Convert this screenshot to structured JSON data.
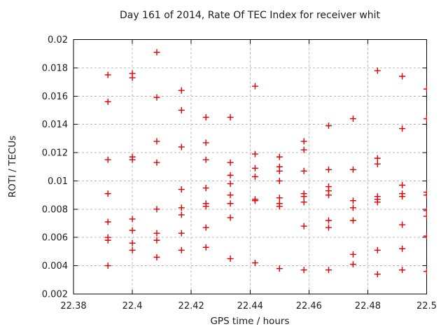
{
  "chart_data": {
    "type": "scatter",
    "title": "Day 161 of 2014, Rate Of TEC Index for receiver whit",
    "xlabel": "GPS time / hours",
    "ylabel": "ROTI / TECUs",
    "xlim": [
      22.38,
      22.5
    ],
    "ylim": [
      0.002,
      0.02
    ],
    "grid": true,
    "legend": "none",
    "marker": {
      "shape": "plus",
      "size": 9
    },
    "xticks": [
      {
        "v": 22.38,
        "label": "22.38"
      },
      {
        "v": 22.4,
        "label": "22.4"
      },
      {
        "v": 22.42,
        "label": "22.42"
      },
      {
        "v": 22.44,
        "label": "22.44"
      },
      {
        "v": 22.46,
        "label": "22.46"
      },
      {
        "v": 22.48,
        "label": "22.48"
      },
      {
        "v": 22.5,
        "label": "22.5"
      }
    ],
    "yticks": [
      {
        "v": 0.002,
        "label": "0.002"
      },
      {
        "v": 0.004,
        "label": "0.004"
      },
      {
        "v": 0.006,
        "label": "0.006"
      },
      {
        "v": 0.008,
        "label": "0.008"
      },
      {
        "v": 0.01,
        "label": "0.01"
      },
      {
        "v": 0.012,
        "label": "0.012"
      },
      {
        "v": 0.014,
        "label": "0.014"
      },
      {
        "v": 0.016,
        "label": "0.016"
      },
      {
        "v": 0.018,
        "label": "0.018"
      },
      {
        "v": 0.02,
        "label": "0.02"
      }
    ],
    "series": [
      {
        "name": "ROTI",
        "points": [
          [
            22.3917,
            0.0175
          ],
          [
            22.3917,
            0.0156
          ],
          [
            22.3917,
            0.0115
          ],
          [
            22.3917,
            0.0091
          ],
          [
            22.3917,
            0.0071
          ],
          [
            22.3917,
            0.006
          ],
          [
            22.3917,
            0.0058
          ],
          [
            22.3917,
            0.004
          ],
          [
            22.4,
            0.0176
          ],
          [
            22.4,
            0.0173
          ],
          [
            22.4,
            0.0117
          ],
          [
            22.4,
            0.0115
          ],
          [
            22.4,
            0.0073
          ],
          [
            22.4,
            0.0065
          ],
          [
            22.4,
            0.0056
          ],
          [
            22.4,
            0.0051
          ],
          [
            22.4083,
            0.0191
          ],
          [
            22.4083,
            0.0159
          ],
          [
            22.4083,
            0.0128
          ],
          [
            22.4083,
            0.0113
          ],
          [
            22.4083,
            0.008
          ],
          [
            22.4083,
            0.0063
          ],
          [
            22.4083,
            0.0058
          ],
          [
            22.4083,
            0.0046
          ],
          [
            22.4167,
            0.0164
          ],
          [
            22.4167,
            0.015
          ],
          [
            22.4167,
            0.0124
          ],
          [
            22.4167,
            0.0094
          ],
          [
            22.4167,
            0.0081
          ],
          [
            22.4167,
            0.0076
          ],
          [
            22.4167,
            0.0063
          ],
          [
            22.4167,
            0.0051
          ],
          [
            22.425,
            0.0145
          ],
          [
            22.425,
            0.0127
          ],
          [
            22.425,
            0.0115
          ],
          [
            22.425,
            0.0095
          ],
          [
            22.425,
            0.0084
          ],
          [
            22.425,
            0.0082
          ],
          [
            22.425,
            0.0067
          ],
          [
            22.425,
            0.0053
          ],
          [
            22.4333,
            0.0145
          ],
          [
            22.4333,
            0.0113
          ],
          [
            22.4333,
            0.0104
          ],
          [
            22.4333,
            0.0098
          ],
          [
            22.4333,
            0.009
          ],
          [
            22.4333,
            0.0084
          ],
          [
            22.4333,
            0.0074
          ],
          [
            22.4333,
            0.0045
          ],
          [
            22.4417,
            0.0167
          ],
          [
            22.4417,
            0.0119
          ],
          [
            22.4417,
            0.0109
          ],
          [
            22.4417,
            0.0103
          ],
          [
            22.4417,
            0.0087
          ],
          [
            22.4417,
            0.0086
          ],
          [
            22.4417,
            0.0042
          ],
          [
            22.45,
            0.0117
          ],
          [
            22.45,
            0.011
          ],
          [
            22.45,
            0.0107
          ],
          [
            22.45,
            0.01
          ],
          [
            22.45,
            0.0088
          ],
          [
            22.45,
            0.0084
          ],
          [
            22.45,
            0.0082
          ],
          [
            22.45,
            0.0038
          ],
          [
            22.4583,
            0.0128
          ],
          [
            22.4583,
            0.0122
          ],
          [
            22.4583,
            0.0107
          ],
          [
            22.4583,
            0.0091
          ],
          [
            22.4583,
            0.0089
          ],
          [
            22.4583,
            0.0085
          ],
          [
            22.4583,
            0.0068
          ],
          [
            22.4583,
            0.0037
          ],
          [
            22.4667,
            0.0139
          ],
          [
            22.4667,
            0.0108
          ],
          [
            22.4667,
            0.0096
          ],
          [
            22.4667,
            0.0093
          ],
          [
            22.4667,
            0.009
          ],
          [
            22.4667,
            0.0072
          ],
          [
            22.4667,
            0.0067
          ],
          [
            22.4667,
            0.0037
          ],
          [
            22.475,
            0.0144
          ],
          [
            22.475,
            0.0108
          ],
          [
            22.475,
            0.0086
          ],
          [
            22.475,
            0.0081
          ],
          [
            22.475,
            0.0072
          ],
          [
            22.475,
            0.0048
          ],
          [
            22.475,
            0.0041
          ],
          [
            22.4833,
            0.0178
          ],
          [
            22.4833,
            0.0116
          ],
          [
            22.4833,
            0.0112
          ],
          [
            22.4833,
            0.0089
          ],
          [
            22.4833,
            0.0087
          ],
          [
            22.4833,
            0.0085
          ],
          [
            22.4833,
            0.0051
          ],
          [
            22.4833,
            0.0034
          ],
          [
            22.4917,
            0.0174
          ],
          [
            22.4917,
            0.0137
          ],
          [
            22.4917,
            0.0097
          ],
          [
            22.4917,
            0.0091
          ],
          [
            22.4917,
            0.0089
          ],
          [
            22.4917,
            0.0069
          ],
          [
            22.4917,
            0.0052
          ],
          [
            22.4917,
            0.0037
          ],
          [
            22.5,
            0.0165
          ],
          [
            22.5,
            0.0144
          ],
          [
            22.5,
            0.0092
          ],
          [
            22.5,
            0.009
          ],
          [
            22.5,
            0.0079
          ],
          [
            22.5,
            0.0075
          ],
          [
            22.5,
            0.0061
          ],
          [
            22.5,
            0.0036
          ]
        ]
      }
    ],
    "colors": {
      "background": "#ffffff",
      "border": "#000000",
      "grid": "#b8b8b8",
      "marker": "#e30000",
      "text": "#1c1c1c"
    }
  }
}
